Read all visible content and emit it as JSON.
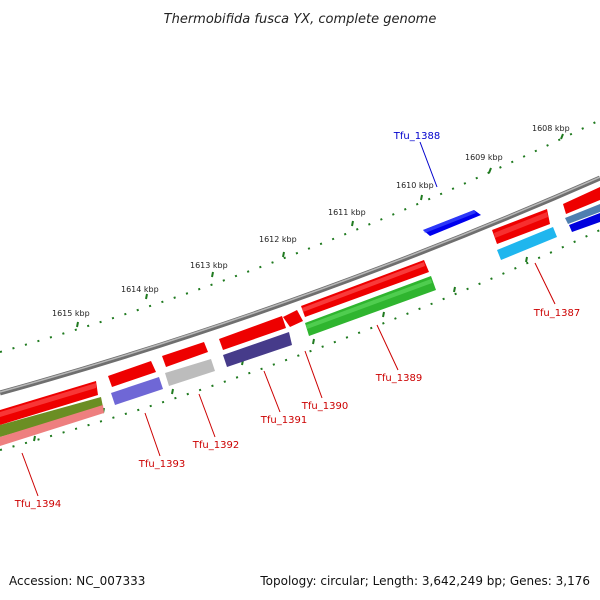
{
  "title": "Thermobifida fusca YX, complete genome",
  "footer": {
    "accession": "Accession: NC_007333",
    "info": "Topology: circular; Length: 3,642,249 bp; Genes: 3,176"
  },
  "scale_labels": [
    "1608 kbp",
    "1609 kbp",
    "1610 kbp",
    "1611 kbp",
    "1612 kbp",
    "1613 kbp",
    "1614 kbp",
    "1615 kbp"
  ],
  "genes": [
    {
      "name": "Tfu_1388",
      "color": "#0000cc"
    },
    {
      "name": "Tfu_1387",
      "color": "#cc0000"
    },
    {
      "name": "Tfu_1389",
      "color": "#cc0000"
    },
    {
      "name": "Tfu_1390",
      "color": "#cc0000"
    },
    {
      "name": "Tfu_1391",
      "color": "#cc0000"
    },
    {
      "name": "Tfu_1392",
      "color": "#cc0000"
    },
    {
      "name": "Tfu_1393",
      "color": "#cc0000"
    },
    {
      "name": "Tfu_1394",
      "color": "#cc0000"
    }
  ],
  "colors": {
    "backbone": "#8a8a8a",
    "tick": "#1f7a1f",
    "forward_cds": "#ee0000",
    "reverse_cds": "#0000dd",
    "light_blue": "#22bbee",
    "steel_blue": "#4f7fb0",
    "green": "#33bb33",
    "olive": "#6b8e23",
    "pink": "#ee8888",
    "gray": "#bbbbbb",
    "purple": "#4a3f8a",
    "lavender": "#7a74d8"
  }
}
